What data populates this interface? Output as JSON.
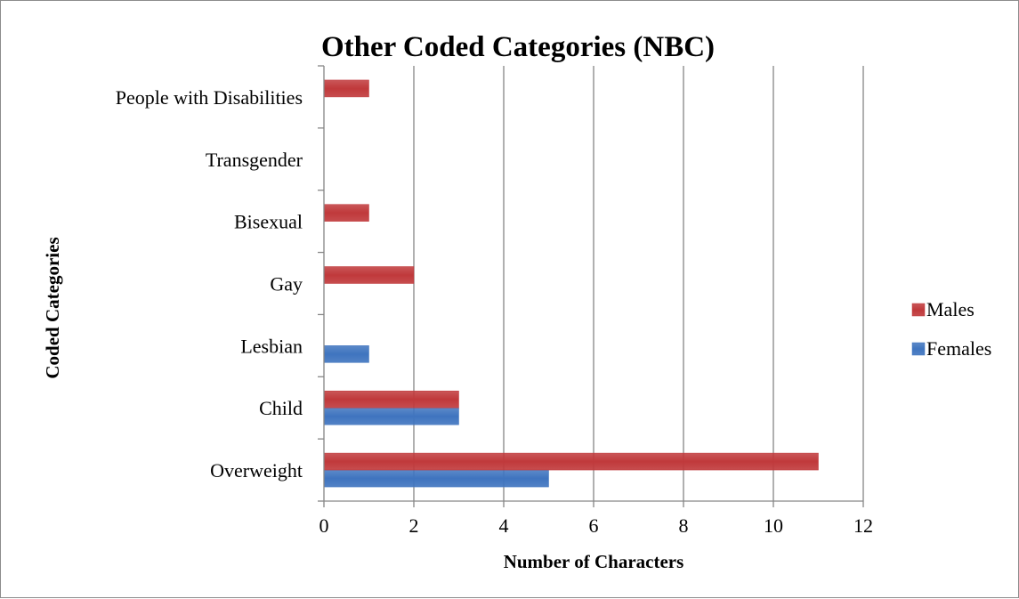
{
  "chart_data": {
    "type": "bar",
    "orientation": "horizontal",
    "title": "Other Coded Categories (NBC)",
    "xlabel": "Number of Characters",
    "ylabel": "Coded Categories",
    "categories": [
      "Overweight",
      "Child",
      "Lesbian",
      "Gay",
      "Bisexual",
      "Transgender",
      "People with Disabilities"
    ],
    "series": [
      {
        "name": "Females",
        "color": "#3f74bf",
        "values": [
          5,
          3,
          1,
          0,
          0,
          0,
          0
        ]
      },
      {
        "name": "Males",
        "color": "#c0393b",
        "values": [
          11,
          3,
          0,
          2,
          1,
          0,
          1
        ]
      }
    ],
    "xlim": [
      0,
      12
    ],
    "xticks": [
      0,
      2,
      4,
      6,
      8,
      10,
      12
    ],
    "grid": "vertical",
    "legend": "right",
    "legend_order": [
      "Males",
      "Females"
    ]
  }
}
